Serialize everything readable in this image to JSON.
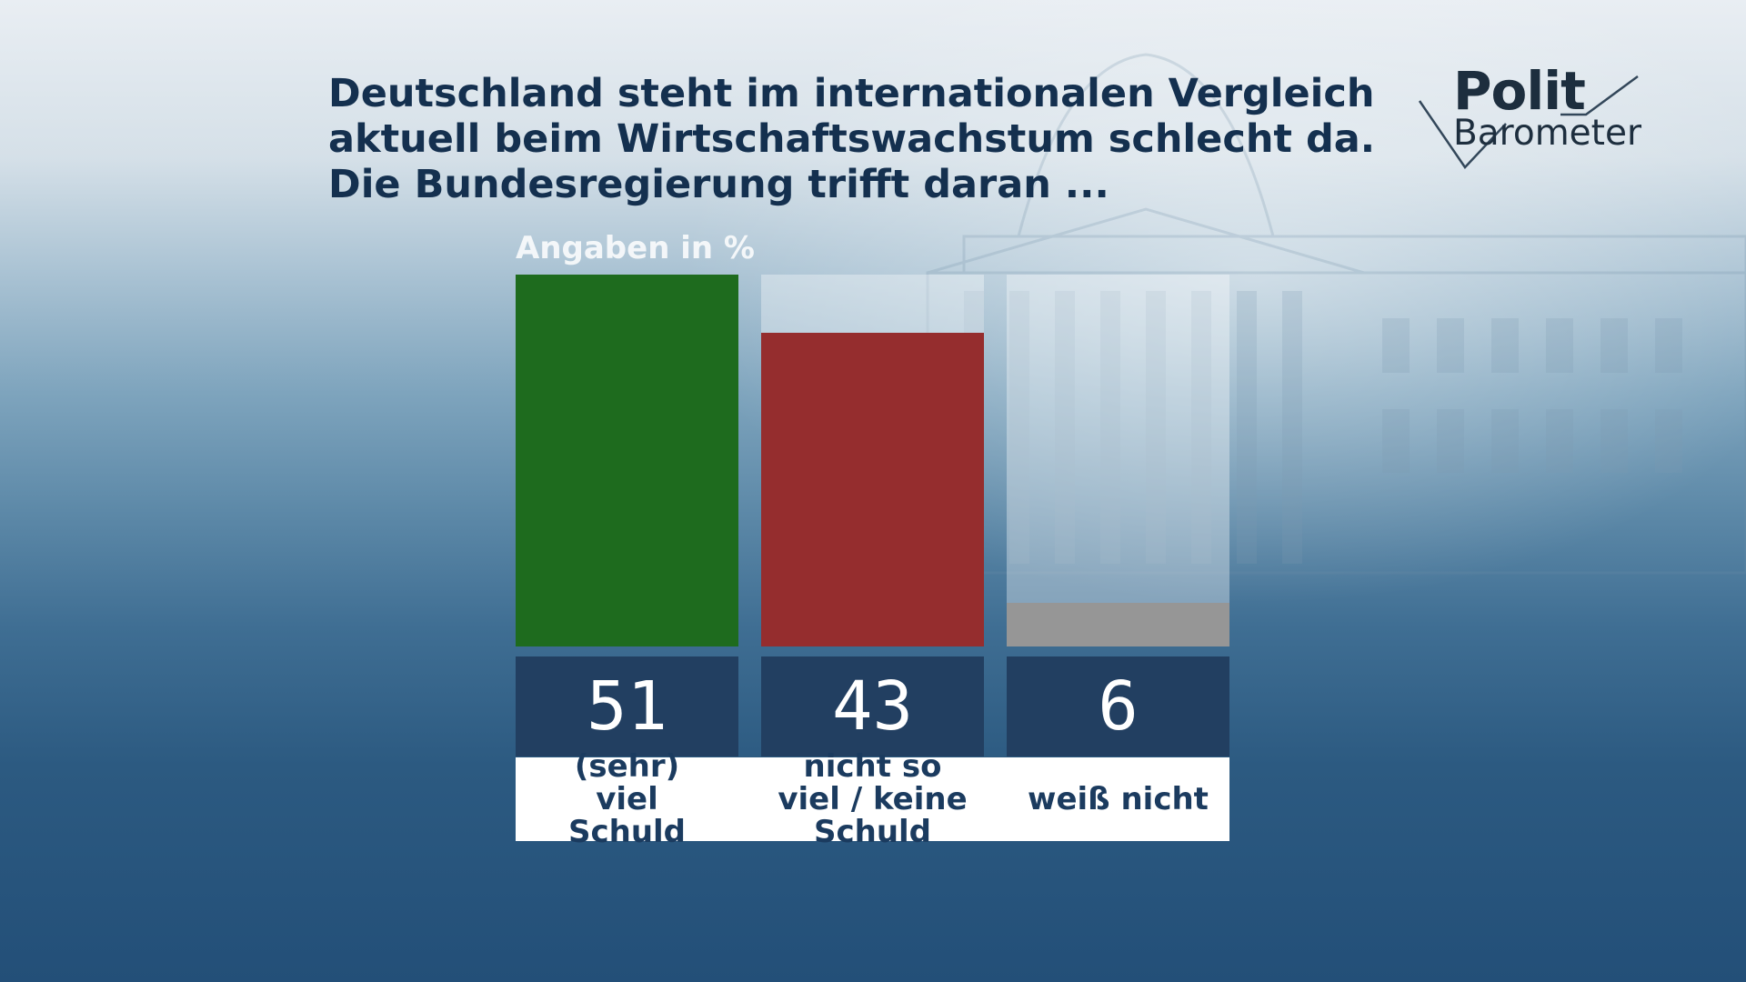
{
  "question": {
    "line1": "Deutschland steht im internationalen Vergleich",
    "line2": "aktuell beim Wirtschaftswachstum schlecht da.",
    "line3": "Die Bundesregierung trifft daran ..."
  },
  "logo": {
    "line1": "Polit",
    "line2": "Barometer"
  },
  "colors": {
    "value_box": "#223f61",
    "label_text": "#1b3b5f",
    "title_text": "#14304f"
  },
  "chart_data": {
    "type": "bar",
    "unit_label": "Angaben in %",
    "categories": [
      "(sehr) viel Schuld",
      "nicht so viel / keine Schuld",
      "weiß nicht"
    ],
    "values": [
      51,
      43,
      6
    ],
    "value_labels": [
      "51",
      "43",
      "6"
    ],
    "colors": [
      "#1e6b1e",
      "#952d2e",
      "#969696"
    ],
    "ylim": [
      0,
      51
    ],
    "grid": false
  }
}
